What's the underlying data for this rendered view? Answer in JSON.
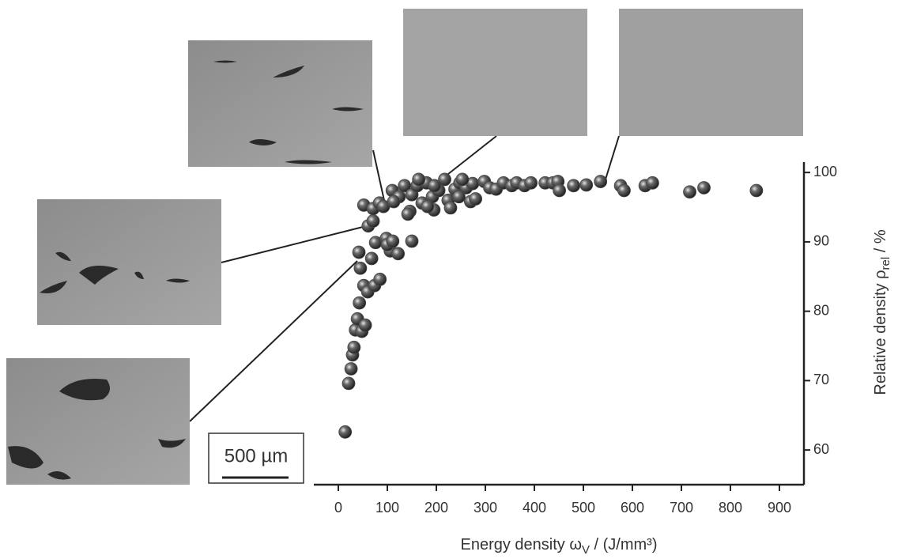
{
  "chart_data": {
    "type": "scatter",
    "x_label": {
      "text": "Energy density ω",
      "sub": "V",
      "suffix": " / (J/mm³)"
    },
    "y_label": {
      "text": "Relative density ρ",
      "sub": "rel",
      "suffix": " / %"
    },
    "annotations": [
      "500 µm"
    ],
    "color": "#4a4a4a",
    "x": [
      14,
      21,
      26,
      29,
      32,
      35,
      39,
      43,
      48,
      55,
      45,
      42,
      52,
      60,
      74,
      85,
      68,
      76,
      61,
      71,
      52,
      71,
      84,
      92,
      98,
      106,
      100,
      122,
      111,
      150,
      110,
      124,
      135,
      146,
      150,
      161,
      171,
      180,
      192,
      195,
      205,
      217,
      224,
      229,
      238,
      248,
      261,
      274,
      270,
      280,
      298,
      309,
      322,
      337,
      354,
      364,
      380,
      393,
      422,
      438,
      448,
      451,
      480,
      506,
      535,
      576,
      583,
      626,
      641,
      717,
      746,
      853,
      164,
      113,
      142,
      182,
      246,
      253,
      196
    ],
    "values": [
      62.6,
      69.6,
      71.7,
      73.7,
      74.8,
      77.3,
      78.9,
      81.2,
      77.1,
      78,
      86.2,
      88.5,
      83.7,
      82.8,
      83.7,
      84.6,
      87.6,
      89.9,
      92.3,
      93,
      95.3,
      94.8,
      95.6,
      95.1,
      90.5,
      88.7,
      89.6,
      88.3,
      90.1,
      90.1,
      97.4,
      96.5,
      98.1,
      94.4,
      96.8,
      98.1,
      95.6,
      98.5,
      96.5,
      94.6,
      97.4,
      99,
      96,
      94.9,
      97.6,
      98.5,
      97.8,
      98.4,
      95.8,
      96.2,
      98.7,
      97.8,
      97.6,
      98.5,
      98.1,
      98.5,
      98.1,
      98.5,
      98.5,
      98.5,
      98.7,
      97.4,
      98.1,
      98.2,
      98.7,
      98.1,
      97.4,
      98.1,
      98.5,
      97.2,
      97.8,
      97.4,
      99,
      95.8,
      94,
      95.1,
      96.5,
      99,
      98.1
    ],
    "xlim": [
      -50,
      950
    ],
    "xticks": [
      0,
      100,
      200,
      300,
      400,
      500,
      600,
      700,
      800,
      900
    ],
    "ylim": [
      55,
      101.5
    ],
    "yticks": [
      60,
      70,
      80,
      90,
      100
    ]
  }
}
